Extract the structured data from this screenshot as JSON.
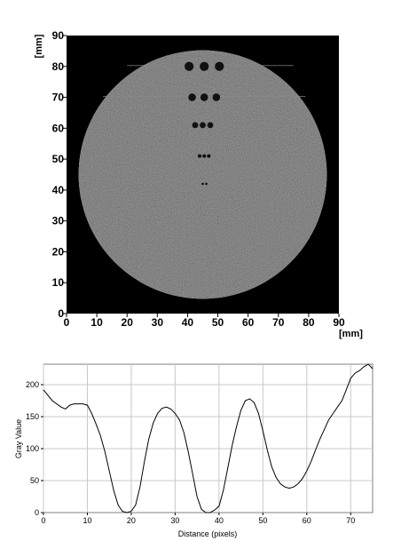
{
  "chart_data": [
    {
      "type": "heatmap",
      "title": "",
      "xlabel": "[mm]",
      "ylabel": "[mm]",
      "xlim": [
        0,
        90
      ],
      "ylim": [
        0,
        90
      ],
      "xticks": [
        "0",
        "10",
        "20",
        "30",
        "40",
        "50",
        "60",
        "70",
        "80",
        "90"
      ],
      "yticks": [
        "0",
        "10",
        "20",
        "30",
        "40",
        "50",
        "60",
        "70",
        "80",
        "90"
      ],
      "phantom": {
        "shape": "circle",
        "center_mm": [
          45,
          45
        ],
        "radius_mm": 41,
        "background_color": "#000000",
        "fill_color": "#b4b4b4"
      },
      "holes": [
        {
          "x": 40.5,
          "y": 80,
          "d": 3.0
        },
        {
          "x": 45.5,
          "y": 80,
          "d": 3.0
        },
        {
          "x": 50.5,
          "y": 80,
          "d": 3.0
        },
        {
          "x": 41.5,
          "y": 70,
          "d": 2.5
        },
        {
          "x": 45.5,
          "y": 70,
          "d": 2.5
        },
        {
          "x": 49.5,
          "y": 70,
          "d": 2.5
        },
        {
          "x": 42.5,
          "y": 61,
          "d": 2.0
        },
        {
          "x": 45.0,
          "y": 61,
          "d": 2.0
        },
        {
          "x": 47.5,
          "y": 61,
          "d": 2.0
        },
        {
          "x": 44.0,
          "y": 51,
          "d": 1.2
        },
        {
          "x": 45.5,
          "y": 51,
          "d": 1.2
        },
        {
          "x": 47.0,
          "y": 51,
          "d": 1.2
        },
        {
          "x": 45.0,
          "y": 42,
          "d": 0.8
        },
        {
          "x": 46.2,
          "y": 42,
          "d": 0.8
        }
      ]
    },
    {
      "type": "line",
      "title": "",
      "xlabel": "Distance (pixels)",
      "ylabel": "Gray Value",
      "xlim": [
        0,
        75
      ],
      "ylim": [
        0,
        232
      ],
      "xticks": [
        0,
        10,
        20,
        30,
        40,
        50,
        60,
        70
      ],
      "yticks": [
        0,
        50,
        100,
        150,
        200
      ],
      "grid": true,
      "line_color": "#000000",
      "series": [
        {
          "x": [
            0,
            2,
            4,
            5,
            6,
            7,
            8,
            9,
            10,
            11,
            12,
            13,
            14,
            15,
            16,
            17,
            18,
            19,
            20,
            21,
            22,
            23,
            24,
            25,
            26,
            27,
            28,
            29,
            30,
            31,
            32,
            33,
            34,
            35,
            36,
            37,
            38,
            39,
            40,
            41,
            42,
            43,
            44,
            45,
            46,
            47,
            48,
            49,
            50,
            51,
            52,
            53,
            54,
            55,
            56,
            57,
            58,
            59,
            60,
            61,
            62,
            63,
            64,
            65,
            66,
            67,
            68,
            69,
            70,
            71,
            72,
            73,
            74,
            75
          ],
          "values": [
            192,
            175,
            165,
            162,
            168,
            170,
            170,
            170,
            168,
            155,
            138,
            120,
            95,
            65,
            35,
            12,
            2,
            0,
            2,
            12,
            40,
            80,
            115,
            140,
            155,
            163,
            165,
            162,
            155,
            145,
            125,
            95,
            60,
            25,
            5,
            0,
            0,
            4,
            10,
            35,
            70,
            105,
            135,
            160,
            175,
            178,
            172,
            155,
            128,
            98,
            72,
            55,
            45,
            40,
            38,
            40,
            45,
            53,
            65,
            80,
            98,
            115,
            130,
            145,
            155,
            165,
            175,
            192,
            210,
            218,
            222,
            228,
            232,
            225
          ]
        }
      ]
    }
  ]
}
